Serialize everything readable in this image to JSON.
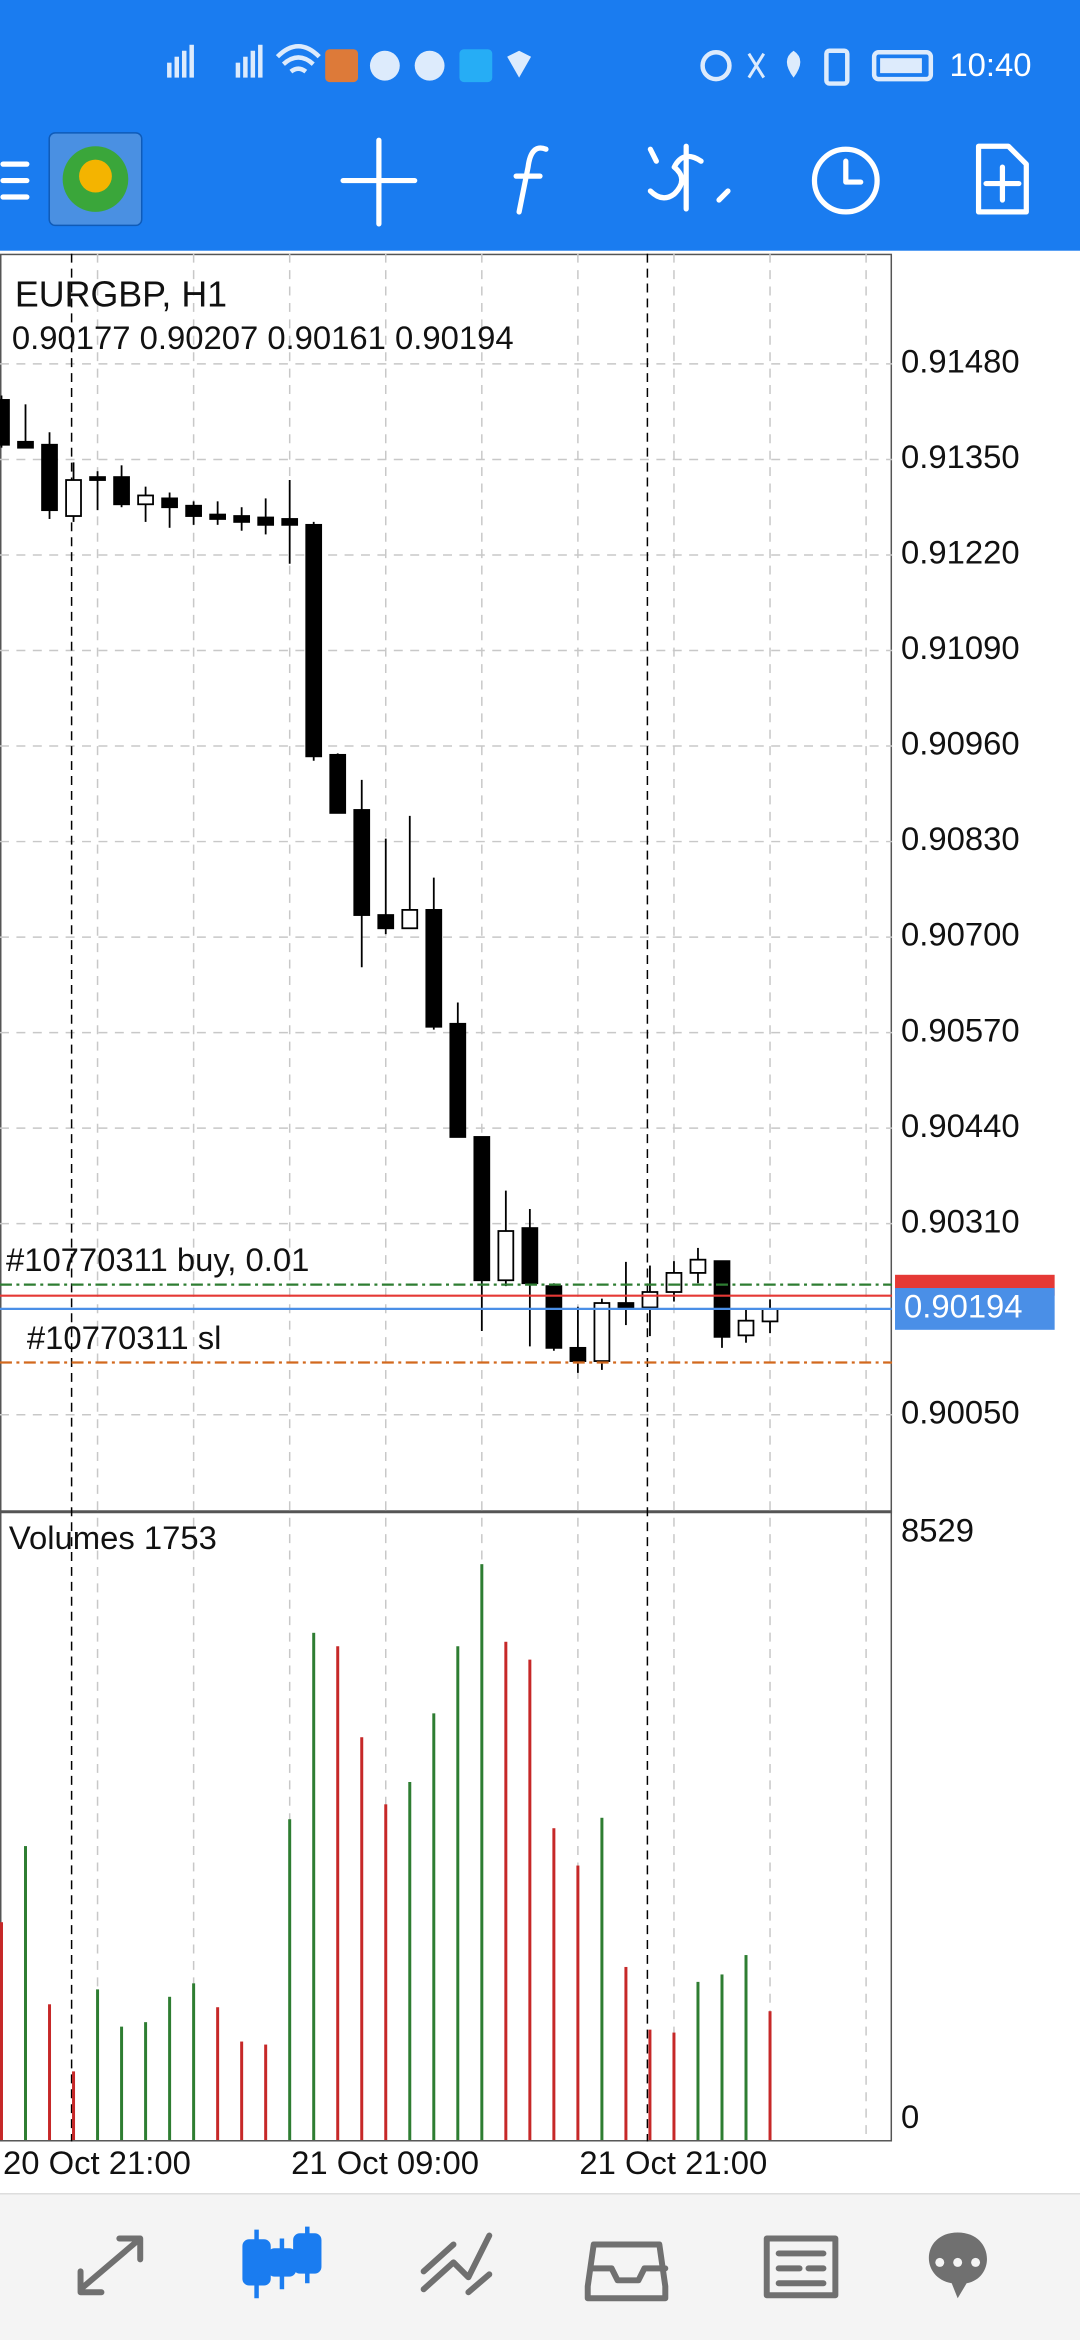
{
  "status_bar": {
    "time": "10:40"
  },
  "chart_data": [
    {
      "type": "candlestick",
      "title": "EURGBP, H1",
      "subtitle": "0.90177 0.90207 0.90161 0.90194",
      "categories": [
        "20 Oct 21:00",
        null,
        null,
        null,
        null,
        null,
        null,
        null,
        null,
        null,
        null,
        null,
        "21 Oct 09:00",
        null,
        null,
        null,
        null,
        null,
        null,
        null,
        null,
        null,
        null,
        null,
        "21 Oct 21:00",
        null,
        null,
        null,
        null,
        null,
        null,
        null,
        null
      ],
      "open": [
        0.91431,
        0.91374,
        0.9137,
        0.91273,
        0.91326,
        0.91326,
        0.91289,
        0.91297,
        0.91287,
        0.91275,
        0.91273,
        0.91271,
        0.91269,
        0.91261,
        0.90948,
        0.90873,
        0.9073,
        0.90712,
        0.90737,
        0.90582,
        0.90428,
        0.90233,
        0.90304,
        0.90225,
        0.90141,
        0.90123,
        0.90202,
        0.90196,
        0.90217,
        0.90243,
        0.90259,
        0.90158,
        0.90177
      ],
      "high": [
        0.91437,
        0.91425,
        0.91387,
        0.91346,
        0.91334,
        0.91342,
        0.91313,
        0.91305,
        0.91293,
        0.91293,
        0.91285,
        0.91297,
        0.91322,
        0.91265,
        0.9095,
        0.90914,
        0.90834,
        0.90865,
        0.90781,
        0.90611,
        0.90428,
        0.90355,
        0.9033,
        0.90229,
        0.90197,
        0.90208,
        0.90258,
        0.90253,
        0.90259,
        0.90277,
        0.90259,
        0.90194,
        0.90207
      ],
      "low": [
        0.91366,
        0.91366,
        0.91269,
        0.91265,
        0.91281,
        0.91285,
        0.91265,
        0.91257,
        0.91261,
        0.91261,
        0.91253,
        0.91248,
        0.91208,
        0.9094,
        0.90869,
        0.90659,
        0.90704,
        0.90712,
        0.90574,
        0.90428,
        0.90164,
        0.90225,
        0.90143,
        0.90137,
        0.90107,
        0.90111,
        0.90172,
        0.90157,
        0.90204,
        0.90229,
        0.90141,
        0.90148,
        0.90161
      ],
      "close": [
        0.9137,
        0.91366,
        0.91281,
        0.91322,
        0.91322,
        0.91289,
        0.91301,
        0.91285,
        0.91273,
        0.91269,
        0.91265,
        0.91261,
        0.91261,
        0.90946,
        0.90869,
        0.9073,
        0.90712,
        0.90737,
        0.90578,
        0.90428,
        0.90233,
        0.903,
        0.90229,
        0.90141,
        0.90123,
        0.90202,
        0.90194,
        0.90217,
        0.90243,
        0.90261,
        0.90156,
        0.90178,
        0.90194
      ],
      "ylim": [
        0.8992,
        0.9163
      ],
      "yticks": [
        {
          "value": 0.9148,
          "label": "0.91480"
        },
        {
          "value": 0.9135,
          "label": "0.91350"
        },
        {
          "value": 0.9122,
          "label": "0.91220"
        },
        {
          "value": 0.9109,
          "label": "0.91090"
        },
        {
          "value": 0.9096,
          "label": "0.90960"
        },
        {
          "value": 0.9083,
          "label": "0.90830"
        },
        {
          "value": 0.907,
          "label": "0.90700"
        },
        {
          "value": 0.9057,
          "label": "0.90570"
        },
        {
          "value": 0.9044,
          "label": "0.90440"
        },
        {
          "value": 0.9031,
          "label": "0.90310"
        },
        {
          "value": 0.9005,
          "label": "0.90050"
        }
      ],
      "grid": true,
      "up_color": "#ffffff",
      "down_color": "#000000",
      "levels": [
        {
          "name": "#10770311 buy, 0.01",
          "value": 0.90227,
          "color": "#2e7d32",
          "style": "dash-dot"
        },
        {
          "value": 0.90212,
          "color": "#e53935",
          "style": "solid"
        },
        {
          "name": "#10770311 sl",
          "value": 0.90121,
          "color": "#d2691e",
          "style": "dash-dot"
        }
      ],
      "bid": {
        "value": 0.90194,
        "color": "#4a8fe7"
      }
    },
    {
      "type": "bar",
      "title": "Volumes 1753",
      "values": [
        2964,
        4000,
        1847,
        934,
        2050,
        1543,
        1604,
        1949,
        2132,
        1807,
        1340,
        1299,
        4365,
        6902,
        6719,
        5481,
        4568,
        4872,
        5806,
        6719,
        7836,
        6780,
        6537,
        4243,
        3735,
        4385,
        2355,
        1502,
        1462,
        2152,
        2253,
        2517,
        1753
      ],
      "colors": [
        "#c62828",
        "#2e7d32",
        "#c62828",
        "#c62828",
        "#2e7d32",
        "#2e7d32",
        "#2e7d32",
        "#2e7d32",
        "#2e7d32",
        "#c62828",
        "#c62828",
        "#c62828",
        "#2e7d32",
        "#2e7d32",
        "#c62828",
        "#c62828",
        "#c62828",
        "#2e7d32",
        "#2e7d32",
        "#2e7d32",
        "#2e7d32",
        "#c62828",
        "#c62828",
        "#c62828",
        "#c62828",
        "#2e7d32",
        "#c62828",
        "#c62828",
        "#c62828",
        "#2e7d32",
        "#2e7d32",
        "#2e7d32",
        "#c62828"
      ],
      "ylim": [
        0,
        8529
      ],
      "yticks": [
        0,
        8529
      ]
    }
  ]
}
